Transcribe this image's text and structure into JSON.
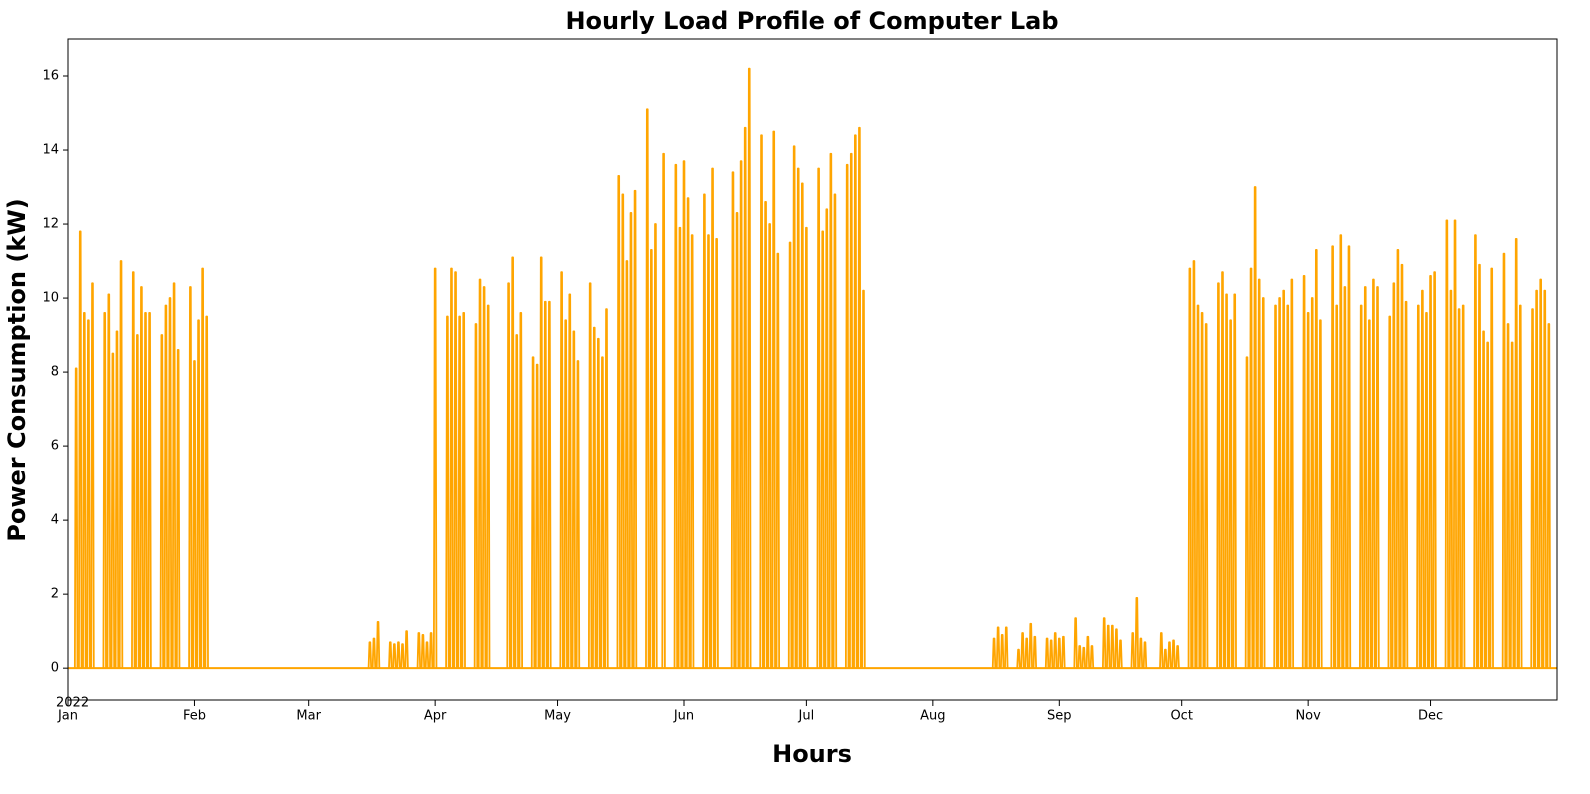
{
  "chart_data": {
    "type": "spike",
    "title": "Hourly Load Profile of Computer Lab",
    "xlabel": "Hours",
    "ylabel": "Power Consumption (kW)",
    "x_year_label": "2022",
    "color": "#ffa500",
    "xlim": [
      0,
      365
    ],
    "xticks": [
      {
        "value": 0,
        "label": "Jan"
      },
      {
        "value": 31,
        "label": "Feb"
      },
      {
        "value": 59,
        "label": "Mar"
      },
      {
        "value": 90,
        "label": "Apr"
      },
      {
        "value": 120,
        "label": "May"
      },
      {
        "value": 151,
        "label": "Jun"
      },
      {
        "value": 181,
        "label": "Jul"
      },
      {
        "value": 212,
        "label": "Aug"
      },
      {
        "value": 243,
        "label": "Sep"
      },
      {
        "value": 273,
        "label": "Oct"
      },
      {
        "value": 304,
        "label": "Nov"
      },
      {
        "value": 334,
        "label": "Dec"
      }
    ],
    "ylim": [
      -0.86,
      17.0
    ],
    "yticks": [
      0,
      2,
      4,
      6,
      8,
      10,
      12,
      14,
      16
    ],
    "x": [
      2,
      3,
      4,
      5,
      6,
      9,
      10,
      11,
      12,
      13,
      16,
      17,
      18,
      19,
      20,
      23,
      24,
      25,
      26,
      27,
      30,
      31,
      32,
      33,
      34,
      74,
      75,
      76,
      79,
      80,
      81,
      82,
      83,
      86,
      87,
      88,
      89,
      90,
      93,
      94,
      95,
      96,
      97,
      100,
      101,
      102,
      103,
      108,
      109,
      110,
      111,
      114,
      115,
      116,
      117,
      118,
      121,
      122,
      123,
      124,
      125,
      128,
      129,
      130,
      131,
      132,
      135,
      136,
      137,
      138,
      139,
      142,
      143,
      144,
      146,
      149,
      150,
      151,
      152,
      153,
      156,
      157,
      158,
      159,
      163,
      164,
      165,
      166,
      167,
      170,
      171,
      172,
      173,
      174,
      177,
      178,
      179,
      180,
      181,
      184,
      185,
      186,
      187,
      188,
      191,
      192,
      193,
      194,
      195,
      227,
      228,
      229,
      230,
      233,
      234,
      235,
      236,
      237,
      240,
      241,
      242,
      243,
      244,
      247,
      248,
      249,
      250,
      251,
      254,
      255,
      256,
      257,
      258,
      261,
      262,
      263,
      264,
      268,
      269,
      270,
      271,
      272,
      275,
      276,
      277,
      278,
      279,
      282,
      283,
      284,
      285,
      286,
      289,
      290,
      291,
      292,
      293,
      296,
      297,
      298,
      299,
      300,
      303,
      304,
      305,
      306,
      307,
      310,
      311,
      312,
      313,
      314,
      317,
      318,
      319,
      320,
      321,
      324,
      325,
      326,
      327,
      328,
      331,
      332,
      333,
      334,
      335,
      338,
      339,
      340,
      341,
      342,
      345,
      346,
      347,
      348,
      349,
      352,
      353,
      354,
      355,
      356,
      359,
      360,
      361,
      362,
      363
    ],
    "values": [
      8.1,
      11.8,
      9.6,
      9.4,
      10.4,
      9.6,
      10.1,
      8.5,
      9.1,
      11.0,
      10.7,
      9.0,
      10.3,
      9.6,
      9.6,
      9.0,
      9.8,
      10.0,
      10.4,
      8.6,
      10.3,
      8.3,
      9.4,
      10.8,
      9.5,
      0.7,
      0.8,
      1.25,
      0.7,
      0.65,
      0.7,
      0.65,
      1.0,
      0.95,
      0.9,
      0.7,
      0.95,
      10.8,
      9.5,
      10.8,
      10.7,
      9.5,
      9.6,
      9.3,
      10.5,
      10.3,
      9.8,
      10.4,
      11.1,
      9.0,
      9.6,
      8.4,
      8.2,
      11.1,
      9.9,
      9.9,
      10.7,
      9.4,
      10.1,
      9.1,
      8.3,
      10.4,
      9.2,
      8.9,
      8.4,
      9.7,
      13.3,
      12.8,
      11.0,
      12.3,
      12.9,
      15.1,
      11.3,
      12.0,
      13.9,
      13.6,
      11.9,
      13.7,
      12.7,
      11.7,
      12.8,
      11.7,
      13.5,
      11.6,
      13.4,
      12.3,
      13.7,
      14.6,
      16.2,
      14.4,
      12.6,
      12.0,
      14.5,
      11.2,
      11.5,
      14.1,
      13.5,
      13.1,
      11.9,
      13.5,
      11.8,
      12.4,
      13.9,
      12.8,
      13.6,
      13.9,
      14.4,
      14.6,
      10.2,
      0.8,
      1.1,
      0.9,
      1.1,
      0.5,
      0.95,
      0.8,
      1.2,
      0.85,
      0.8,
      0.75,
      0.95,
      0.8,
      0.85,
      1.35,
      0.6,
      0.55,
      0.85,
      0.6,
      1.35,
      1.15,
      1.15,
      1.05,
      0.75,
      0.95,
      1.9,
      0.8,
      0.7,
      0.95,
      0.5,
      0.7,
      0.75,
      0.6,
      10.8,
      11.0,
      9.8,
      9.6,
      9.3,
      10.4,
      10.7,
      10.1,
      9.4,
      10.1,
      8.4,
      10.8,
      13.0,
      10.5,
      10.0,
      9.8,
      10.0,
      10.2,
      9.8,
      10.5,
      10.6,
      9.6,
      10.0,
      11.3,
      9.4,
      11.4,
      9.8,
      11.7,
      10.3,
      11.4,
      9.8,
      10.3,
      9.4,
      10.5,
      10.3,
      9.5,
      10.4,
      11.3,
      10.9,
      9.9,
      9.8,
      10.2,
      9.6,
      10.6,
      10.7,
      12.1,
      10.2,
      12.1,
      9.7,
      9.8,
      11.7,
      10.9,
      9.1,
      8.8,
      10.8,
      11.2,
      9.3,
      8.8,
      11.6,
      9.8,
      9.7,
      10.2,
      10.5,
      10.2,
      9.3
    ]
  }
}
